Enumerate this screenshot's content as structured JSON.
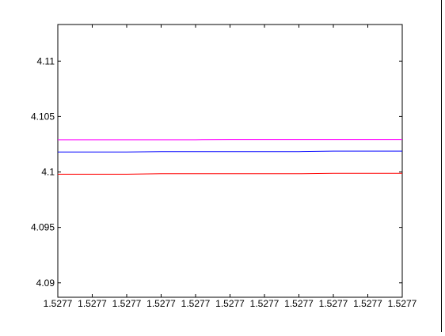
{
  "chart_data": {
    "type": "line",
    "title": "",
    "xlabel": "",
    "ylabel": "",
    "x": [
      1,
      2,
      3,
      4,
      5,
      6,
      7,
      8,
      9,
      10,
      11
    ],
    "x_tick_labels": [
      "1.5277",
      "1.5277",
      "1.5277",
      "1.5277",
      "1.5277",
      "1.5277",
      "1.5277",
      "1.5277",
      "1.5277",
      "1.5277",
      "1.5277"
    ],
    "xlim": [
      1,
      11
    ],
    "ylim": [
      4.0887,
      4.1133
    ],
    "y_ticks": [
      4.09,
      4.095,
      4.1,
      4.105,
      4.11
    ],
    "y_tick_labels": [
      "4.09",
      "4.095",
      "4.1",
      "4.105",
      "4.11"
    ],
    "grid": false,
    "series": [
      {
        "name": "magenta",
        "color": "#ff00ff",
        "values": [
          4.1029,
          4.1029,
          4.1029,
          4.1029,
          4.1029,
          4.10292,
          4.10292,
          4.10292,
          4.10292,
          4.10292,
          4.10292
        ]
      },
      {
        "name": "blue",
        "color": "#0000ff",
        "values": [
          4.1018,
          4.1018,
          4.1018,
          4.10184,
          4.10184,
          4.10184,
          4.10184,
          4.10184,
          4.10188,
          4.10188,
          4.10188
        ]
      },
      {
        "name": "red",
        "color": "#ff0000",
        "values": [
          4.0998,
          4.0998,
          4.0998,
          4.09984,
          4.09984,
          4.09984,
          4.09984,
          4.09984,
          4.09988,
          4.09988,
          4.09988
        ]
      }
    ]
  }
}
